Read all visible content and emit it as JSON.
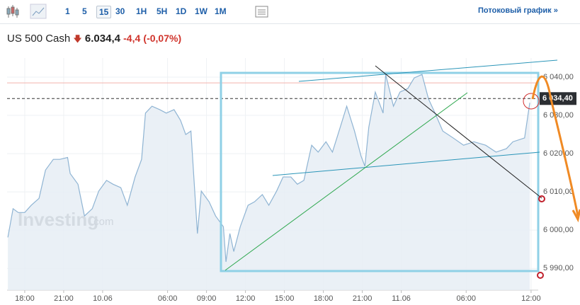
{
  "toolbar": {
    "buttons": [
      "1",
      "5",
      "15",
      "30",
      "1H",
      "5H",
      "1D",
      "1W",
      "1M"
    ],
    "active": "15",
    "stream_link": "Потоковый график »"
  },
  "header": {
    "instrument": "US 500 Cash",
    "price": "6.034,4",
    "change": "-4,4",
    "change_percent": "(-0,07%)"
  },
  "chart_data": {
    "type": "area",
    "watermark": "Investing",
    "watermark_suffix": ".com",
    "x": [
      -1.3,
      -0.9,
      -0.5,
      0,
      0.5,
      1.1,
      1.6,
      2.2,
      2.7,
      3.3,
      3.5,
      4.1,
      4.6,
      5.2,
      5.7,
      6.3,
      6.8,
      7.4,
      7.9,
      8.5,
      9.0,
      9.3,
      9.8,
      10.4,
      10.9,
      11.5,
      12.0,
      12.4,
      12.8,
      13.3,
      13.6,
      14.2,
      14.7,
      15.3,
      15.5,
      15.8,
      16.1,
      16.6,
      17.2,
      17.7,
      18.3,
      18.8,
      19.4,
      19.9,
      20.5,
      21.0,
      21.5,
      22.1,
      22.6,
      23.2,
      23.7,
      24.3,
      24.8,
      25.4,
      25.9,
      26.2,
      26.5,
      27.0,
      27.6,
      27.8,
      28.4,
      28.9,
      29.5,
      30.0,
      30.6,
      31.1,
      31.6,
      32.2,
      33.0,
      33.8,
      34.6,
      35.5,
      36.3,
      37.1,
      37.6,
      38.5,
      38.9
    ],
    "series": [
      {
        "color": "#8fb4d3",
        "values": [
          5998.1,
          6005.6,
          6004.6,
          6004.6,
          6006.5,
          6008.3,
          6015.7,
          6018.5,
          6018.5,
          6019.0,
          6014.8,
          6012.0,
          6003.7,
          6005.6,
          6010.2,
          6013.0,
          6012.0,
          6011.1,
          6006.5,
          6013.9,
          6018.5,
          6030.6,
          6032.4,
          6031.5,
          6030.6,
          6031.5,
          6028.7,
          6025.0,
          6025.9,
          5999.1,
          6010.2,
          6007.4,
          6003.7,
          6000.9,
          5991.7,
          5999.1,
          5994.4,
          6000.9,
          6006.5,
          6007.4,
          6009.3,
          6006.5,
          6010.2,
          6013.9,
          6013.9,
          6012.0,
          6013.0,
          6022.2,
          6020.4,
          6023.1,
          6020.4,
          6026.9,
          6032.4,
          6025.9,
          6019.4,
          6016.7,
          6026.9,
          6036.1,
          6030.6,
          6040.7,
          6032.4,
          6036.1,
          6037.0,
          6039.8,
          6040.7,
          6034.3,
          6030.6,
          6025.9,
          6024.1,
          6022.2,
          6023.1,
          6022.2,
          6020.4,
          6021.3,
          6023.1,
          6024.1,
          6033.3
        ]
      }
    ],
    "xlim": [
      -1.36,
      39.55
    ],
    "xticks": [
      {
        "value": 0,
        "label": "18:00"
      },
      {
        "value": 3,
        "label": "21:00"
      },
      {
        "value": 6,
        "label": "10.06"
      },
      {
        "value": 11,
        "label": "06:00"
      },
      {
        "value": 14,
        "label": "09:00"
      },
      {
        "value": 17,
        "label": "12:00"
      },
      {
        "value": 20,
        "label": "15:00"
      },
      {
        "value": 23,
        "label": "18:00"
      },
      {
        "value": 26,
        "label": "21:00"
      },
      {
        "value": 29,
        "label": "11.06"
      },
      {
        "value": 34,
        "label": "06:00"
      },
      {
        "value": 39,
        "label": "12:00"
      }
    ],
    "ylim": [
      5984.3,
      6045
    ],
    "yticks": [
      {
        "value": 5990,
        "label": "5 990,00"
      },
      {
        "value": 6000,
        "label": "6 000,00"
      },
      {
        "value": 6010,
        "label": "6 010,00"
      },
      {
        "value": 6020,
        "label": "6 020,00"
      },
      {
        "value": 6030,
        "label": "6 030,00"
      },
      {
        "value": 6040,
        "label": "6 040,00"
      }
    ],
    "current_price": {
      "value": 6034.4,
      "label": "6 034,40"
    },
    "reference_line": 6038.5,
    "grid": true
  }
}
